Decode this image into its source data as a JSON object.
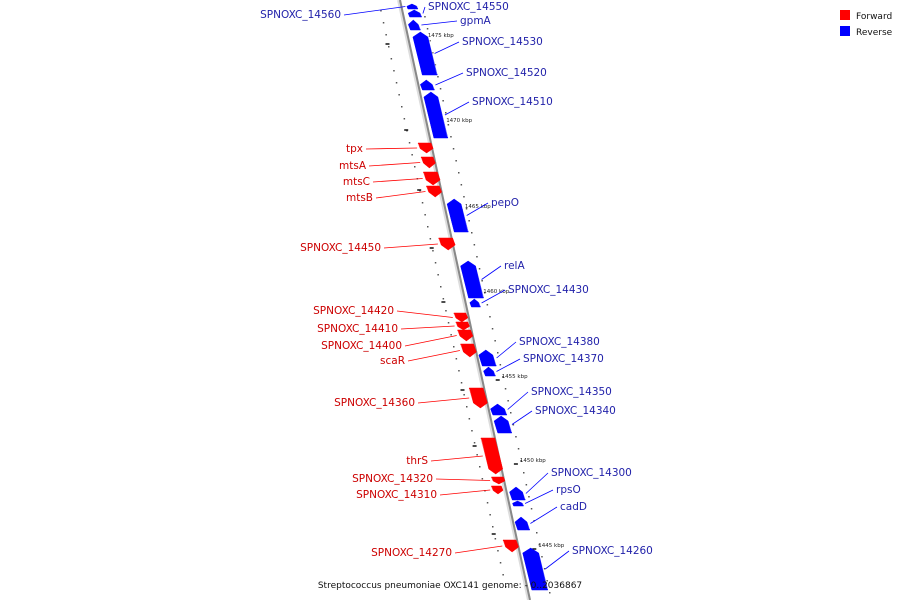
{
  "legend": {
    "items": [
      {
        "label": "Forward",
        "color": "#ff0000"
      },
      {
        "label": "Reverse",
        "color": "#0000ff"
      }
    ]
  },
  "footer": {
    "caption": "Streptococcus pneumoniae OXC141 genome: - 0..2036867"
  },
  "colors": {
    "forward": "#ff0000",
    "reverse": "#0000ff",
    "backbone": "#888888",
    "forward_label": "#cc0000",
    "reverse_label": "#2222aa"
  },
  "ticks": [
    {
      "label": "1475 kbp"
    },
    {
      "label": "1470 kbp"
    },
    {
      "label": "1465 kbp"
    },
    {
      "label": "1460 kbp"
    },
    {
      "label": "1455 kbp"
    },
    {
      "label": "1450 kbp"
    },
    {
      "label": "1445 kbp"
    }
  ],
  "genes": [
    {
      "name": "SPNOXC_14560",
      "strand": "reverse"
    },
    {
      "name": "SPNOXC_14550",
      "strand": "reverse"
    },
    {
      "name": "gpmA",
      "strand": "reverse"
    },
    {
      "name": "SPNOXC_14530",
      "strand": "reverse"
    },
    {
      "name": "SPNOXC_14520",
      "strand": "reverse"
    },
    {
      "name": "SPNOXC_14510",
      "strand": "reverse"
    },
    {
      "name": "tpx",
      "strand": "forward"
    },
    {
      "name": "mtsA",
      "strand": "forward"
    },
    {
      "name": "mtsC",
      "strand": "forward"
    },
    {
      "name": "mtsB",
      "strand": "forward"
    },
    {
      "name": "pepO",
      "strand": "reverse"
    },
    {
      "name": "SPNOXC_14450",
      "strand": "forward"
    },
    {
      "name": "relA",
      "strand": "reverse"
    },
    {
      "name": "SPNOXC_14430",
      "strand": "reverse"
    },
    {
      "name": "SPNOXC_14420",
      "strand": "forward"
    },
    {
      "name": "SPNOXC_14410",
      "strand": "forward"
    },
    {
      "name": "SPNOXC_14400",
      "strand": "forward"
    },
    {
      "name": "scaR",
      "strand": "forward"
    },
    {
      "name": "SPNOXC_14380",
      "strand": "reverse"
    },
    {
      "name": "SPNOXC_14370",
      "strand": "reverse"
    },
    {
      "name": "SPNOXC_14350",
      "strand": "reverse"
    },
    {
      "name": "SPNOXC_14340",
      "strand": "reverse"
    },
    {
      "name": "SPNOXC_14360",
      "strand": "forward"
    },
    {
      "name": "thrS",
      "strand": "forward"
    },
    {
      "name": "SPNOXC_14320",
      "strand": "forward"
    },
    {
      "name": "SPNOXC_14310",
      "strand": "forward"
    },
    {
      "name": "SPNOXC_14300",
      "strand": "reverse"
    },
    {
      "name": "rpsO",
      "strand": "reverse"
    },
    {
      "name": "cadD",
      "strand": "reverse"
    },
    {
      "name": "SPNOXC_14270",
      "strand": "forward"
    },
    {
      "name": "SPNOXC_14260",
      "strand": "reverse"
    }
  ]
}
